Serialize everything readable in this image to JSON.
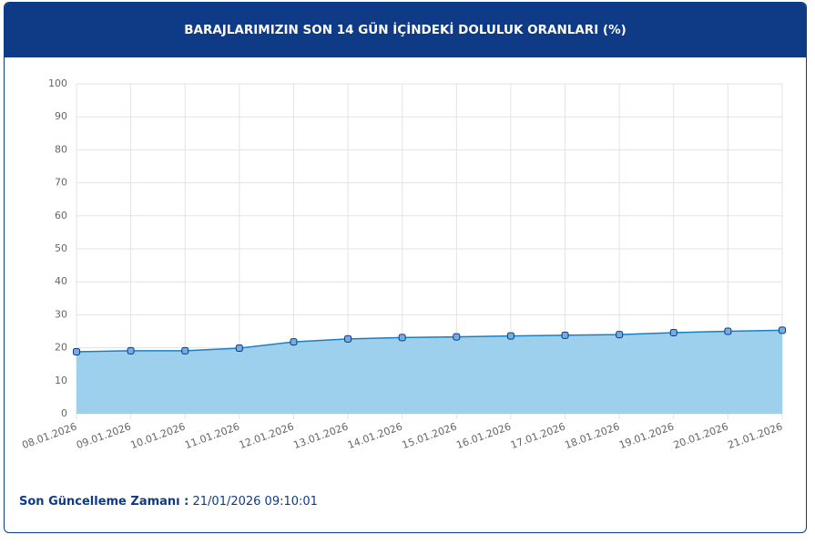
{
  "chart_data": {
    "type": "area",
    "title": "BARAJLARIMIZIN SON 14 GÜN İÇİNDEKİ DOLULUK ORANLARI (%)",
    "categories": [
      "08.01.2026",
      "09.01.2026",
      "10.01.2026",
      "11.01.2026",
      "12.01.2026",
      "13.01.2026",
      "14.01.2026",
      "15.01.2026",
      "16.01.2026",
      "17.01.2026",
      "18.01.2026",
      "19.01.2026",
      "20.01.2026",
      "21.01.2026"
    ],
    "values": [
      18.8,
      19.1,
      19.1,
      19.9,
      21.8,
      22.7,
      23.1,
      23.3,
      23.6,
      23.8,
      24.0,
      24.6,
      25.0,
      25.3
    ],
    "color": "#1b7fc4",
    "fill_color": "#9dd0ec",
    "marker_color": "#74aee0",
    "ylim": [
      0,
      100
    ],
    "yticks": [
      0,
      10,
      20,
      30,
      40,
      50,
      60,
      70,
      80,
      90,
      100
    ],
    "grid": true
  },
  "footer": {
    "label": "Son Güncelleme Zamanı :",
    "value": "21/01/2026 09:10:01"
  }
}
